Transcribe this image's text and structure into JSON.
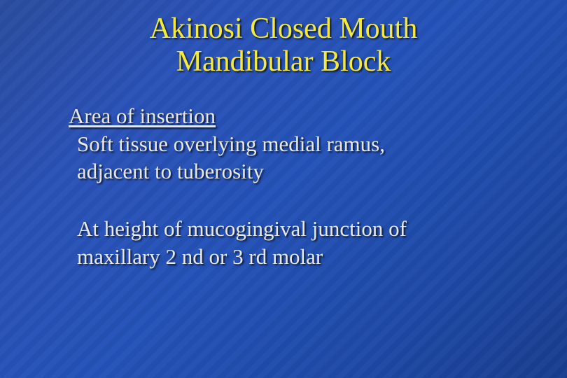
{
  "slide": {
    "background_gradient": [
      "#2a4d9e",
      "#2a52b8",
      "#2452b8",
      "#1e4aa8",
      "#193d8e"
    ],
    "title": {
      "line1": "Akinosi Closed Mouth",
      "line2": "Mandibular Block",
      "color": "#f5ea3a",
      "fontsize": 42,
      "font_family": "Times New Roman",
      "shadow_color": "#000000"
    },
    "body": {
      "color": "#e8e8e8",
      "fontsize": 31,
      "heading": "Area of insertion",
      "para1_line1": " Soft tissue overlying medial ramus,",
      "para1_line2": "adjacent to tuberosity",
      "para2_line1": " At height of mucogingival junction of",
      "para2_line2": "maxillary 2 nd or 3 rd molar"
    }
  }
}
